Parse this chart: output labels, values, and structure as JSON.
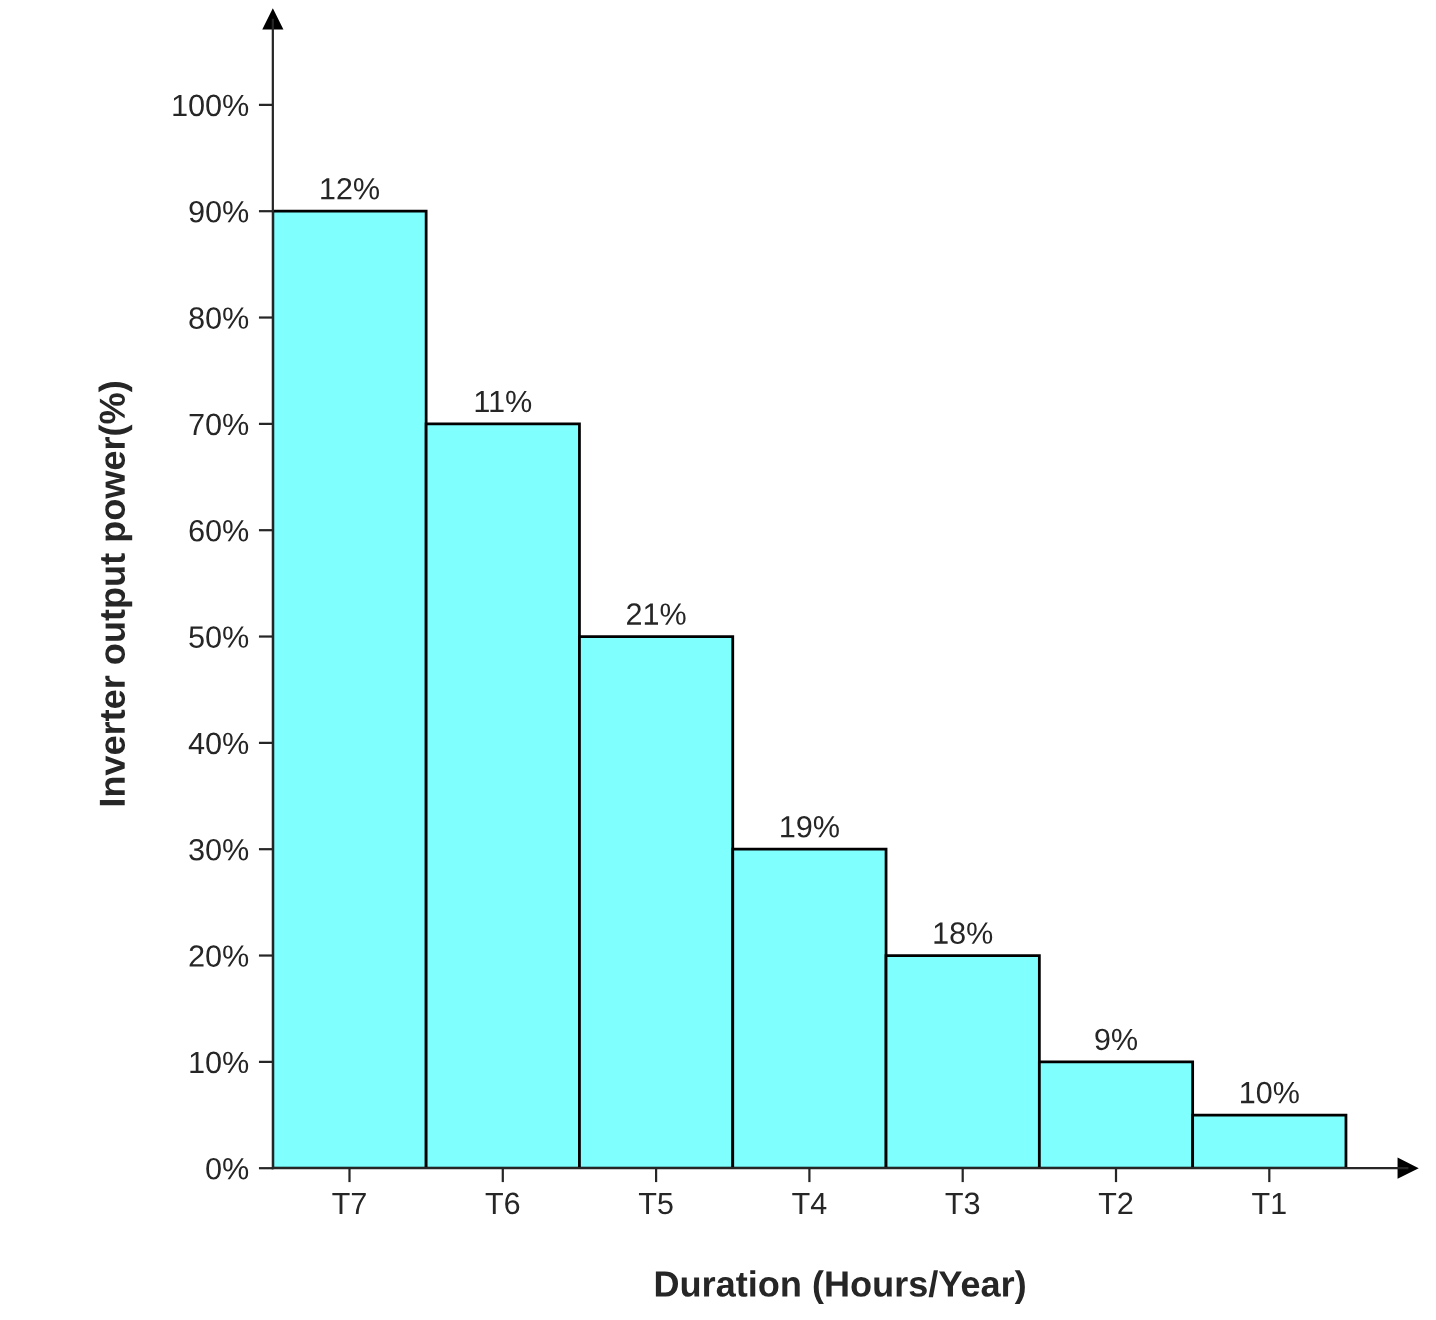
{
  "chart_data": {
    "type": "bar",
    "xlabel": "Duration (Hours/Year)",
    "ylabel": "Inverter output power(%)",
    "categories": [
      "T7",
      "T6",
      "T5",
      "T4",
      "T3",
      "T2",
      "T1"
    ],
    "values": [
      90,
      70,
      50,
      30,
      20,
      10,
      5
    ],
    "annotations": [
      {
        "text": "12%",
        "x": "T7",
        "y": 90
      },
      {
        "text": "11%",
        "x": "T6",
        "y": 70
      },
      {
        "text": "21%",
        "x": "T5",
        "y": 50
      },
      {
        "text": "19%",
        "x": "T4",
        "y": 30
      },
      {
        "text": "18%",
        "x": "T3",
        "y": 20
      },
      {
        "text": "9%",
        "x": "T2",
        "y": 10
      },
      {
        "text": "10%",
        "x": "T1",
        "y": 5
      }
    ],
    "color": "#80ffff",
    "ylim": [
      0,
      108
    ],
    "yticks": [
      {
        "value": 0,
        "label": "0%"
      },
      {
        "value": 10,
        "label": "10%"
      },
      {
        "value": 20,
        "label": "20%"
      },
      {
        "value": 30,
        "label": "30%"
      },
      {
        "value": 40,
        "label": "40%"
      },
      {
        "value": 50,
        "label": "50%"
      },
      {
        "value": 60,
        "label": "60%"
      },
      {
        "value": 70,
        "label": "70%"
      },
      {
        "value": 80,
        "label": "80%"
      },
      {
        "value": 90,
        "label": "90%"
      },
      {
        "value": 100,
        "label": "100%"
      }
    ],
    "grid": false,
    "legend": false
  }
}
